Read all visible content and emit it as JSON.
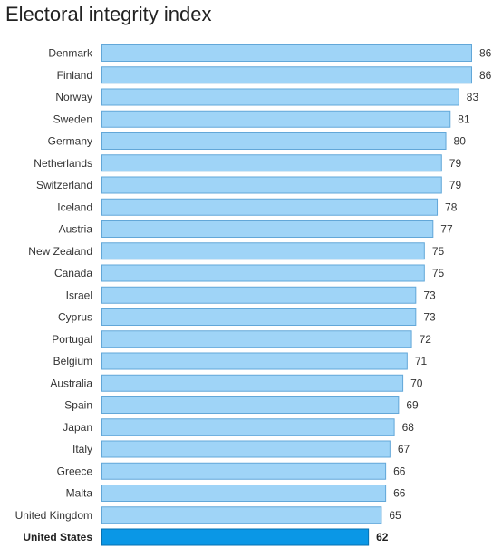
{
  "chart_data": {
    "type": "bar",
    "orientation": "horizontal",
    "title": "Electoral integrity index",
    "categories": [
      "Denmark",
      "Finland",
      "Norway",
      "Sweden",
      "Germany",
      "Netherlands",
      "Switzerland",
      "Iceland",
      "Austria",
      "New Zealand",
      "Canada",
      "Israel",
      "Cyprus",
      "Portugal",
      "Belgium",
      "Australia",
      "Spain",
      "Japan",
      "Italy",
      "Greece",
      "Malta",
      "United Kingdom",
      "United States"
    ],
    "values": [
      86,
      86,
      83,
      81,
      80,
      79,
      79,
      78,
      77,
      75,
      75,
      73,
      73,
      72,
      71,
      70,
      69,
      68,
      67,
      66,
      66,
      65,
      62
    ],
    "highlight": "United States",
    "xlim": [
      0,
      86
    ],
    "grid": false,
    "colors": {
      "bar": "#9fd4f7",
      "bar_border": "#62a7d8",
      "highlight": "#0a97e6",
      "highlight_border": "#0672b3"
    }
  }
}
